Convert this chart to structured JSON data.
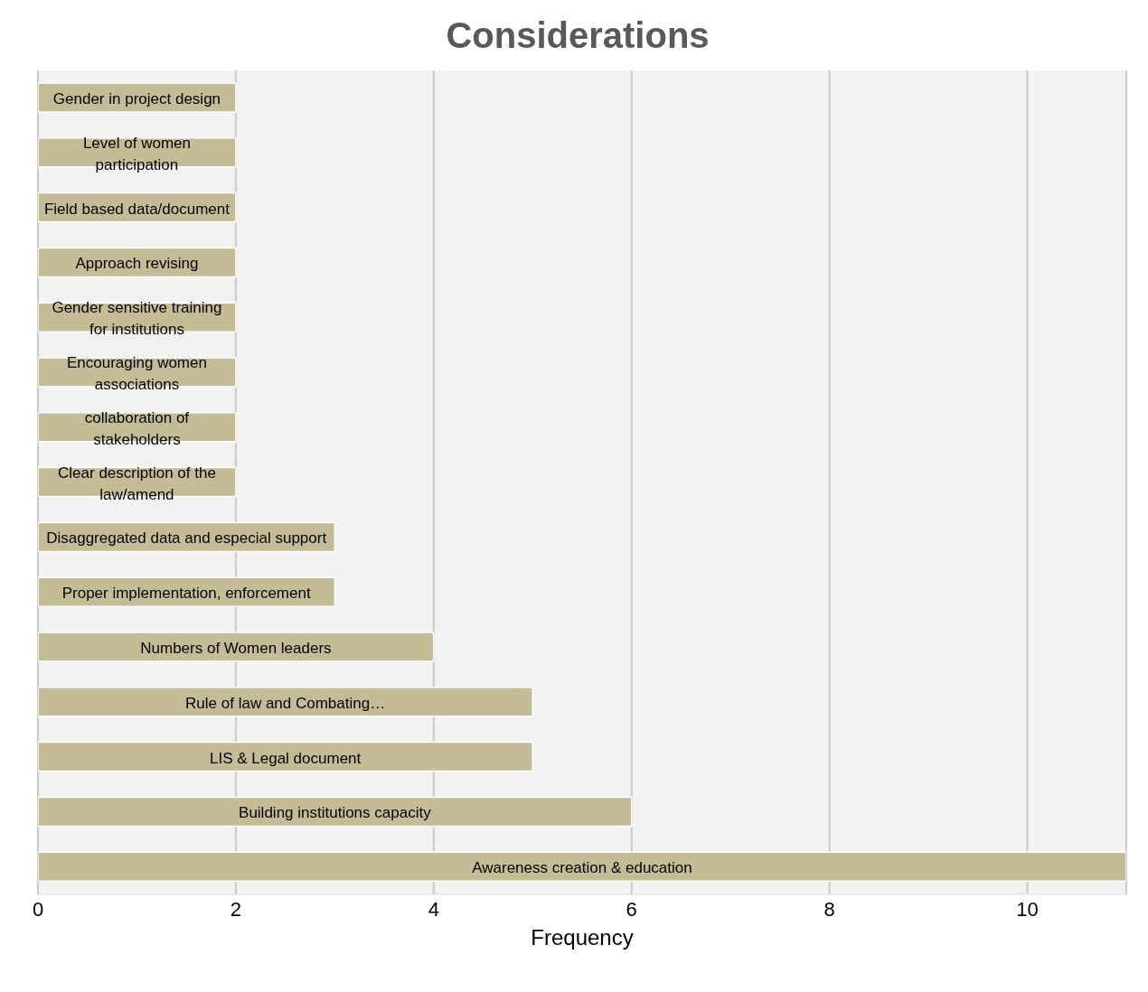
{
  "chart_data": {
    "type": "bar",
    "orientation": "horizontal",
    "title": "Considerations",
    "xlabel": "Frequency",
    "categories": [
      "Gender in project design",
      "Level of women participation",
      "Field based data/document",
      "Approach revising",
      "Gender sensitive training for institutions",
      "Encouraging women associations",
      "collaboration of stakeholders",
      "Clear description of the law/amend",
      "Disaggregated data and especial support",
      "Proper implementation, enforcement",
      "Numbers of Women leaders",
      "Rule of law and Combating…",
      "LIS & Legal document",
      "Building institutions capacity",
      "Awareness creation & education"
    ],
    "values": [
      2,
      2,
      2,
      2,
      2,
      2,
      2,
      2,
      3,
      3,
      4,
      5,
      5,
      6,
      11
    ],
    "color": "#c4bc96",
    "xlim": [
      0,
      11
    ],
    "xticks": [
      0,
      2,
      4,
      6,
      8,
      10
    ],
    "grid": "x",
    "tick_labels": "x"
  }
}
